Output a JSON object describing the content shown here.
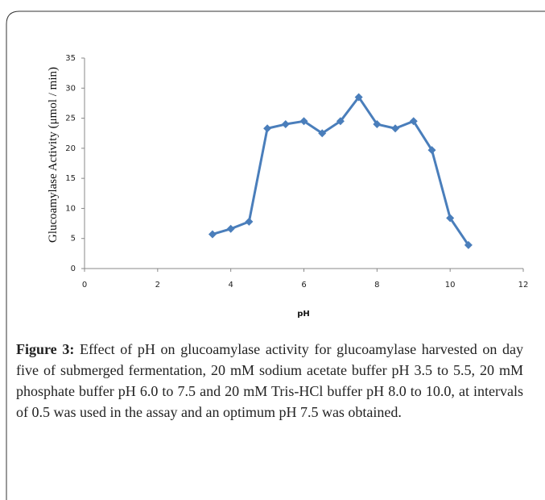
{
  "chart_data": {
    "type": "line",
    "y_label": "Glucoamylase Activity  (μmol / min)",
    "x_label": "pH",
    "x": [
      3.5,
      4,
      4.5,
      5,
      5.5,
      6,
      6.5,
      7,
      7.5,
      8,
      8.5,
      9,
      9.5,
      10,
      10.5
    ],
    "values": [
      5.7,
      6.6,
      7.8,
      23.3,
      24,
      24.5,
      22.5,
      24.5,
      28.5,
      24,
      23.3,
      24.5,
      19.7,
      8.4,
      3.9
    ],
    "color": "#4a7ebb",
    "marker": "diamond",
    "xlim": [
      0,
      12
    ],
    "xticks": [
      0,
      2,
      4,
      6,
      8,
      10,
      12
    ],
    "ylim": [
      0,
      35
    ],
    "yticks": [
      0,
      5,
      10,
      15,
      20,
      25,
      30,
      35
    ],
    "grid": false
  },
  "caption": {
    "label": "Figure 3:",
    "text": " Effect of pH on glucoamylase activity for glucoamylase harvested on day five of submerged fermentation, 20 mM sodium acetate buffer pH 3.5 to 5.5, 20 mM phosphate buffer pH 6.0 to 7.5 and 20 mM Tris-HCl buffer pH 8.0 to 10.0, at intervals of 0.5 was used in the assay and an optimum pH 7.5 was obtained."
  }
}
